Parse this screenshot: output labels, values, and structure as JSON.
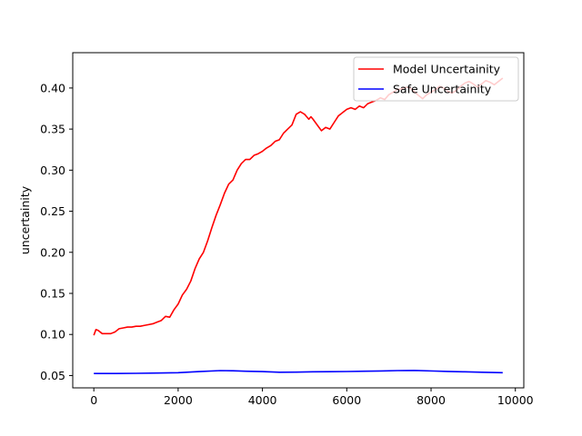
{
  "chart_data": {
    "type": "line",
    "title": "",
    "xlabel": "",
    "ylabel": "uncertainity",
    "xlim": [
      -500,
      10200
    ],
    "ylim": [
      0.035,
      0.443
    ],
    "xticks": [
      0,
      2000,
      4000,
      6000,
      8000,
      10000
    ],
    "yticks": [
      0.05,
      0.1,
      0.15,
      0.2,
      0.25,
      0.3,
      0.35,
      0.4
    ],
    "grid": false,
    "legend_position": "top-right",
    "series": [
      {
        "name": "Model Uncertainity",
        "color": "#ff0000",
        "x": [
          0,
          50,
          100,
          200,
          300,
          400,
          500,
          600,
          700,
          800,
          900,
          1000,
          1100,
          1200,
          1300,
          1400,
          1500,
          1600,
          1700,
          1800,
          1900,
          2000,
          2100,
          2200,
          2300,
          2400,
          2500,
          2600,
          2700,
          2800,
          2900,
          3000,
          3100,
          3200,
          3300,
          3400,
          3500,
          3600,
          3700,
          3800,
          3900,
          4000,
          4100,
          4200,
          4300,
          4400,
          4500,
          4600,
          4700,
          4800,
          4900,
          5000,
          5100,
          5150,
          5200,
          5300,
          5400,
          5500,
          5600,
          5700,
          5800,
          5900,
          6000,
          6100,
          6200,
          6300,
          6400,
          6500,
          6600,
          6700,
          6800,
          6900,
          7000,
          7100,
          7200,
          7300,
          7400,
          7500,
          7600,
          7700,
          7800,
          7900,
          8000,
          8100,
          8200,
          8300,
          8400,
          8500,
          8600,
          8700,
          8800,
          8900,
          9000,
          9100,
          9200,
          9300,
          9400,
          9500,
          9600,
          9700
        ],
        "y": [
          0.099,
          0.106,
          0.105,
          0.101,
          0.101,
          0.101,
          0.103,
          0.107,
          0.108,
          0.109,
          0.109,
          0.11,
          0.11,
          0.111,
          0.112,
          0.113,
          0.115,
          0.117,
          0.122,
          0.121,
          0.13,
          0.137,
          0.148,
          0.155,
          0.165,
          0.18,
          0.192,
          0.2,
          0.214,
          0.23,
          0.245,
          0.258,
          0.272,
          0.283,
          0.288,
          0.3,
          0.308,
          0.313,
          0.313,
          0.318,
          0.32,
          0.323,
          0.327,
          0.33,
          0.335,
          0.337,
          0.345,
          0.35,
          0.355,
          0.368,
          0.371,
          0.368,
          0.362,
          0.365,
          0.362,
          0.355,
          0.348,
          0.352,
          0.35,
          0.358,
          0.366,
          0.37,
          0.374,
          0.376,
          0.374,
          0.378,
          0.376,
          0.381,
          0.383,
          0.385,
          0.388,
          0.386,
          0.392,
          0.395,
          0.398,
          0.399,
          0.401,
          0.4,
          0.396,
          0.391,
          0.387,
          0.392,
          0.395,
          0.398,
          0.402,
          0.4,
          0.396,
          0.394,
          0.397,
          0.402,
          0.406,
          0.408,
          0.405,
          0.401,
          0.405,
          0.409,
          0.407,
          0.404,
          0.408,
          0.412
        ]
      },
      {
        "name": "Safe Uncertainity",
        "color": "#0000ff",
        "x": [
          0,
          500,
          1000,
          1500,
          2000,
          2500,
          3000,
          3300,
          3600,
          4000,
          4400,
          4800,
          5200,
          5600,
          6000,
          6400,
          6800,
          7200,
          7600,
          8000,
          8400,
          8800,
          9200,
          9700
        ],
        "y": [
          0.0525,
          0.0525,
          0.0527,
          0.053,
          0.0535,
          0.0548,
          0.056,
          0.0558,
          0.0552,
          0.0548,
          0.054,
          0.0542,
          0.0545,
          0.0547,
          0.0549,
          0.0552,
          0.0555,
          0.056,
          0.0562,
          0.0556,
          0.055,
          0.0545,
          0.054,
          0.0535
        ]
      }
    ]
  }
}
